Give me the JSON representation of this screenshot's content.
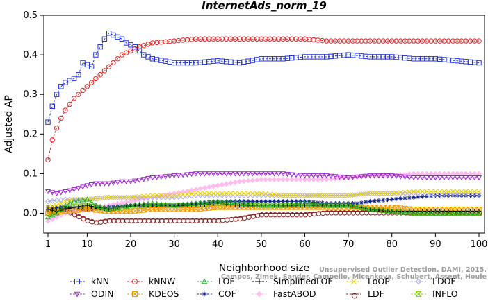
{
  "chart_data": {
    "type": "line",
    "title": "InternetAds_norm_19",
    "xlabel": "Neighborhood size",
    "ylabel": "Adjusted AP",
    "xlim": [
      1,
      100
    ],
    "ylim": [
      -0.05,
      0.5
    ],
    "xticks": [
      1,
      10,
      20,
      30,
      40,
      50,
      60,
      70,
      80,
      90,
      100
    ],
    "yticks": [
      0.0,
      0.1,
      0.2,
      0.3,
      0.4,
      0.5
    ],
    "ytick_labels": [
      "0.0",
      "0.1",
      "0.2",
      "0.3",
      "0.4",
      "0.5"
    ],
    "grid": false,
    "legend_position": "bottom",
    "series": [
      {
        "name": "kNN",
        "color": "#2233cc",
        "marker": "square",
        "x": [
          1,
          2,
          3,
          4,
          5,
          6,
          7,
          8,
          9,
          10,
          11,
          12,
          13,
          14,
          15,
          16,
          17,
          18,
          19,
          20,
          21,
          22,
          23,
          24,
          25,
          30,
          35,
          40,
          45,
          50,
          55,
          60,
          65,
          70,
          75,
          80,
          85,
          90,
          95,
          100
        ],
        "y": [
          0.23,
          0.27,
          0.3,
          0.32,
          0.33,
          0.335,
          0.34,
          0.35,
          0.38,
          0.375,
          0.37,
          0.4,
          0.42,
          0.44,
          0.455,
          0.45,
          0.445,
          0.44,
          0.43,
          0.425,
          0.42,
          0.41,
          0.4,
          0.395,
          0.39,
          0.38,
          0.38,
          0.385,
          0.38,
          0.39,
          0.39,
          0.395,
          0.395,
          0.4,
          0.395,
          0.395,
          0.39,
          0.39,
          0.385,
          0.38
        ]
      },
      {
        "name": "kNNW",
        "color": "#dd2222",
        "marker": "circle",
        "x": [
          1,
          2,
          3,
          4,
          5,
          6,
          7,
          8,
          9,
          10,
          11,
          12,
          13,
          14,
          15,
          16,
          17,
          18,
          19,
          20,
          22,
          25,
          30,
          35,
          40,
          45,
          50,
          55,
          60,
          65,
          70,
          75,
          80,
          85,
          90,
          95,
          100
        ],
        "y": [
          0.135,
          0.185,
          0.215,
          0.24,
          0.26,
          0.275,
          0.29,
          0.3,
          0.31,
          0.32,
          0.33,
          0.34,
          0.35,
          0.36,
          0.37,
          0.38,
          0.39,
          0.4,
          0.405,
          0.41,
          0.42,
          0.43,
          0.435,
          0.44,
          0.44,
          0.44,
          0.44,
          0.44,
          0.44,
          0.435,
          0.435,
          0.435,
          0.435,
          0.435,
          0.435,
          0.435,
          0.435
        ]
      },
      {
        "name": "LOF",
        "color": "#22aa22",
        "marker": "triangle-up",
        "x": [
          1,
          3,
          5,
          7,
          10,
          12,
          15,
          18,
          20,
          25,
          30,
          35,
          40,
          45,
          50,
          55,
          60,
          65,
          70,
          75,
          80,
          85,
          90,
          95,
          100
        ],
        "y": [
          -0.01,
          0.0,
          0.02,
          0.03,
          0.035,
          0.02,
          0.01,
          0.015,
          0.02,
          0.025,
          0.02,
          0.025,
          0.03,
          0.025,
          0.02,
          0.02,
          0.025,
          0.02,
          0.02,
          0.01,
          0.005,
          0.0,
          0.0,
          0.0,
          0.0
        ]
      },
      {
        "name": "SimplifiedLOF",
        "color": "#000000",
        "marker": "plus",
        "x": [
          1,
          3,
          5,
          7,
          10,
          12,
          15,
          18,
          20,
          25,
          30,
          35,
          40,
          45,
          50,
          55,
          60,
          65,
          70,
          75,
          80,
          85,
          90,
          95,
          100
        ],
        "y": [
          0.01,
          0.005,
          0.01,
          0.015,
          0.02,
          0.015,
          0.01,
          0.015,
          0.02,
          0.02,
          0.02,
          0.02,
          0.025,
          0.02,
          0.02,
          0.02,
          0.02,
          0.02,
          0.02,
          0.01,
          0.005,
          0.005,
          0.005,
          0.005,
          0.005
        ]
      },
      {
        "name": "LoOP",
        "color": "#e8d000",
        "marker": "x",
        "x": [
          1,
          3,
          5,
          7,
          10,
          15,
          20,
          25,
          30,
          35,
          40,
          45,
          50,
          55,
          60,
          65,
          70,
          75,
          80,
          85,
          90,
          95,
          100
        ],
        "y": [
          0.015,
          0.02,
          0.03,
          0.035,
          0.035,
          0.04,
          0.04,
          0.045,
          0.045,
          0.05,
          0.05,
          0.05,
          0.05,
          0.045,
          0.045,
          0.045,
          0.045,
          0.05,
          0.05,
          0.055,
          0.055,
          0.055,
          0.055
        ]
      },
      {
        "name": "LDOF",
        "color": "#aaaaee",
        "marker": "diamond",
        "x": [
          1,
          5,
          10,
          15,
          20,
          25,
          30,
          35,
          40,
          45,
          50,
          55,
          60,
          65,
          70,
          75,
          80,
          85,
          90,
          95,
          100
        ],
        "y": [
          0.03,
          0.035,
          0.035,
          0.04,
          0.04,
          0.04,
          0.04,
          0.045,
          0.045,
          0.045,
          0.045,
          0.045,
          0.045,
          0.045,
          0.045,
          0.05,
          0.05,
          0.05,
          0.05,
          0.05,
          0.05
        ]
      },
      {
        "name": "ODIN",
        "color": "#9922cc",
        "marker": "triangle-down",
        "x": [
          1,
          3,
          5,
          7,
          10,
          12,
          15,
          18,
          20,
          25,
          30,
          35,
          40,
          45,
          50,
          55,
          60,
          65,
          70,
          75,
          80,
          85,
          90,
          95,
          100
        ],
        "y": [
          0.055,
          0.05,
          0.055,
          0.06,
          0.07,
          0.075,
          0.075,
          0.08,
          0.08,
          0.09,
          0.095,
          0.1,
          0.1,
          0.1,
          0.1,
          0.1,
          0.095,
          0.095,
          0.09,
          0.095,
          0.095,
          0.09,
          0.09,
          0.09,
          0.09
        ]
      },
      {
        "name": "KDEOS",
        "color": "#ee9900",
        "marker": "square-x",
        "x": [
          1,
          5,
          10,
          15,
          20,
          25,
          30,
          35,
          40,
          45,
          50,
          55,
          60,
          65,
          70,
          75,
          80,
          85,
          90,
          95,
          100
        ],
        "y": [
          0.0,
          0.005,
          0.01,
          0.005,
          0.005,
          0.01,
          0.01,
          0.01,
          0.015,
          0.015,
          0.015,
          0.015,
          0.015,
          0.015,
          0.015,
          0.015,
          0.015,
          0.01,
          0.01,
          0.01,
          0.01
        ]
      },
      {
        "name": "COF",
        "color": "#112288",
        "marker": "asterisk",
        "x": [
          1,
          5,
          10,
          15,
          20,
          25,
          30,
          35,
          40,
          45,
          50,
          55,
          60,
          65,
          70,
          72,
          75,
          80,
          85,
          90,
          95,
          100
        ],
        "y": [
          0.015,
          0.015,
          0.01,
          0.015,
          0.02,
          0.02,
          0.02,
          0.025,
          0.03,
          0.03,
          0.03,
          0.03,
          0.03,
          0.025,
          0.025,
          0.025,
          0.03,
          0.035,
          0.04,
          0.045,
          0.045,
          0.045
        ]
      },
      {
        "name": "FastABOD",
        "color": "#ffbbee",
        "marker": "diamond-filled",
        "x": [
          1,
          3,
          5,
          10,
          15,
          20,
          25,
          30,
          35,
          40,
          45,
          50,
          55,
          60,
          65,
          70,
          75,
          80,
          85,
          90,
          95,
          100
        ],
        "y": [
          -0.02,
          -0.01,
          0.0,
          0.01,
          0.02,
          0.03,
          0.04,
          0.05,
          0.06,
          0.07,
          0.08,
          0.085,
          0.085,
          0.085,
          0.085,
          0.09,
          0.095,
          0.095,
          0.1,
          0.1,
          0.1,
          0.1
        ]
      },
      {
        "name": "LDF",
        "color": "#882222",
        "marker": "circle-dash",
        "x": [
          1,
          3,
          5,
          7,
          10,
          12,
          15,
          18,
          20,
          25,
          30,
          35,
          40,
          45,
          50,
          55,
          60,
          65,
          70,
          75,
          80,
          85,
          90,
          95,
          100
        ],
        "y": [
          0.01,
          0.015,
          0.01,
          0.0,
          -0.015,
          -0.02,
          -0.015,
          -0.015,
          -0.015,
          -0.015,
          -0.015,
          -0.015,
          -0.015,
          -0.01,
          0.0,
          0.0,
          0.0,
          0.005,
          0.005,
          0.005,
          0.005,
          0.005,
          0.005,
          0.005,
          0.005
        ]
      },
      {
        "name": "INFLO",
        "color": "#88cc22",
        "marker": "square-x",
        "x": [
          1,
          5,
          10,
          15,
          20,
          25,
          30,
          35,
          40,
          45,
          50,
          55,
          60,
          65,
          70,
          75,
          80,
          85,
          90,
          95,
          100
        ],
        "y": [
          0.0,
          0.015,
          0.02,
          0.01,
          0.015,
          0.02,
          0.02,
          0.02,
          0.025,
          0.025,
          0.02,
          0.02,
          0.02,
          0.02,
          0.02,
          0.01,
          0.005,
          0.0,
          0.0,
          0.0,
          0.0
        ]
      }
    ]
  },
  "watermark": {
    "line1": "Unsupervised Outlier Detection. DAMI, 2015.",
    "line2": "Campos, Zimek, Sander, Campello, Micenkova, Schubert, Assent, Houle"
  }
}
